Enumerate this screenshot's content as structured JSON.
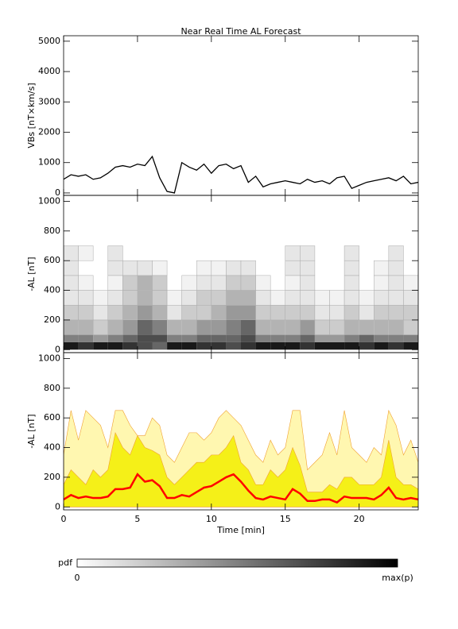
{
  "chart_data": [
    {
      "type": "line",
      "title": "Near Real Time AL Forecast",
      "ylabel": "VBs [nT×km/s]",
      "xlim": [
        0,
        24
      ],
      "ylim": [
        -80,
        5180
      ],
      "yticks": [
        0,
        1000,
        2000,
        3000,
        4000,
        5000
      ],
      "x": [
        0,
        0.5,
        1,
        1.5,
        2,
        2.5,
        3,
        3.5,
        4,
        4.5,
        5,
        5.5,
        6,
        6.5,
        7,
        7.5,
        8,
        8.5,
        9,
        9.5,
        10,
        10.5,
        11,
        11.5,
        12,
        12.5,
        13,
        13.5,
        14,
        14.5,
        15,
        15.5,
        16,
        16.5,
        17,
        17.5,
        18,
        18.5,
        19,
        19.5,
        20,
        20.5,
        21,
        21.5,
        22,
        22.5,
        23,
        23.5,
        24
      ],
      "series": [
        {
          "color": "#000000",
          "values": [
            450,
            600,
            550,
            600,
            450,
            500,
            650,
            850,
            900,
            850,
            950,
            900,
            1200,
            500,
            50,
            0,
            1000,
            850,
            750,
            950,
            650,
            900,
            950,
            800,
            900,
            350,
            550,
            200,
            300,
            350,
            400,
            350,
            300,
            450,
            350,
            400,
            300,
            500,
            550,
            150,
            250,
            350,
            400,
            450,
            500,
            400,
            550,
            300,
            350
          ]
        }
      ]
    },
    {
      "type": "heatmap",
      "ylabel": "-AL [nT]",
      "xlim": [
        0,
        24
      ],
      "ylim": [
        -20,
        1040
      ],
      "yticks": [
        0,
        200,
        400,
        600,
        800,
        1000
      ],
      "x_bins": [
        0,
        1,
        2,
        3,
        4,
        5,
        6,
        7,
        8,
        9,
        10,
        11,
        12,
        13,
        14,
        15,
        16,
        17,
        18,
        19,
        20,
        21,
        22,
        23,
        24
      ],
      "y_bins": [
        0,
        50,
        100,
        200,
        300,
        400,
        500,
        600,
        700
      ],
      "values": [
        [
          0.9,
          0.8,
          0.9,
          0.9,
          0.8,
          0.7,
          0.6,
          0.9,
          0.9,
          0.8,
          0.8,
          0.7,
          0.8,
          0.9,
          0.9,
          0.9,
          0.8,
          0.9,
          0.9,
          0.9,
          0.8,
          0.9,
          0.8,
          0.9
        ],
        [
          0.5,
          0.5,
          0.4,
          0.5,
          0.6,
          0.7,
          0.7,
          0.5,
          0.5,
          0.6,
          0.6,
          0.6,
          0.7,
          0.5,
          0.5,
          0.5,
          0.6,
          0.4,
          0.4,
          0.5,
          0.6,
          0.5,
          0.5,
          0.5
        ],
        [
          0.3,
          0.3,
          0.2,
          0.3,
          0.4,
          0.6,
          0.5,
          0.3,
          0.3,
          0.4,
          0.4,
          0.5,
          0.6,
          0.3,
          0.3,
          0.3,
          0.4,
          0.2,
          0.2,
          0.3,
          0.3,
          0.3,
          0.3,
          0.2
        ],
        [
          0.2,
          0.2,
          0.1,
          0.2,
          0.3,
          0.4,
          0.3,
          0.1,
          0.2,
          0.2,
          0.3,
          0.4,
          0.4,
          0.2,
          0.2,
          0.2,
          0.2,
          0.1,
          0.1,
          0.2,
          0.1,
          0.2,
          0.2,
          0.2
        ],
        [
          0.1,
          0.1,
          0.05,
          0.1,
          0.2,
          0.3,
          0.2,
          0.05,
          0.1,
          0.2,
          0.2,
          0.3,
          0.3,
          0.1,
          0.05,
          0.1,
          0.1,
          0.05,
          0.05,
          0.1,
          0.05,
          0.1,
          0.1,
          0.1
        ],
        [
          0.1,
          0.05,
          0,
          0.05,
          0.2,
          0.3,
          0.2,
          0,
          0.05,
          0.1,
          0.1,
          0.2,
          0.2,
          0.05,
          0,
          0.05,
          0.1,
          0,
          0,
          0.1,
          0,
          0.05,
          0.1,
          0.05
        ],
        [
          0.1,
          0,
          0,
          0.1,
          0.1,
          0.1,
          0.05,
          0,
          0,
          0.05,
          0.05,
          0.1,
          0.1,
          0,
          0,
          0.1,
          0.1,
          0,
          0,
          0.1,
          0,
          0.05,
          0.1,
          0
        ],
        [
          0.1,
          0.05,
          0,
          0.1,
          0,
          0,
          0,
          0,
          0,
          0,
          0,
          0,
          0,
          0,
          0,
          0.1,
          0.1,
          0,
          0,
          0.1,
          0,
          0,
          0.1,
          0
        ]
      ],
      "colorbar": {
        "label": "pdf",
        "min_label": "0",
        "max_label": "max(p)"
      }
    },
    {
      "type": "line",
      "ylabel": "-AL [nT]",
      "xlabel": "Time [min]",
      "xlim": [
        0,
        24
      ],
      "ylim": [
        -20,
        1040
      ],
      "yticks": [
        0,
        200,
        400,
        600,
        800,
        1000
      ],
      "xticks": [
        0,
        5,
        10,
        15,
        20
      ],
      "x": [
        0,
        0.5,
        1,
        1.5,
        2,
        2.5,
        3,
        3.5,
        4,
        4.5,
        5,
        5.5,
        6,
        6.5,
        7,
        7.5,
        8,
        8.5,
        9,
        9.5,
        10,
        10.5,
        11,
        11.5,
        12,
        12.5,
        13,
        13.5,
        14,
        14.5,
        15,
        15.5,
        16,
        16.5,
        17,
        17.5,
        18,
        18.5,
        19,
        19.5,
        20,
        20.5,
        21,
        21.5,
        22,
        22.5,
        23,
        23.5,
        24
      ],
      "series": [
        {
          "kind": "area",
          "color": "#fff7b0",
          "values": [
            350,
            650,
            450,
            650,
            600,
            550,
            400,
            650,
            650,
            550,
            480,
            480,
            600,
            550,
            350,
            300,
            400,
            500,
            500,
            450,
            500,
            600,
            650,
            600,
            550,
            450,
            350,
            300,
            450,
            350,
            400,
            650,
            650,
            250,
            300,
            350,
            500,
            350,
            650,
            400,
            350,
            300,
            400,
            350,
            650,
            550,
            350,
            450,
            300
          ]
        },
        {
          "kind": "area",
          "color": "#f5f018",
          "values": [
            150,
            250,
            200,
            150,
            250,
            200,
            250,
            500,
            400,
            350,
            480,
            400,
            380,
            350,
            200,
            150,
            200,
            250,
            300,
            300,
            350,
            350,
            400,
            480,
            300,
            250,
            150,
            150,
            250,
            200,
            250,
            400,
            280,
            100,
            100,
            100,
            150,
            120,
            200,
            200,
            150,
            150,
            150,
            200,
            450,
            200,
            150,
            150,
            120
          ]
        },
        {
          "kind": "line",
          "color": "#ff0000",
          "values": [
            50,
            80,
            60,
            70,
            60,
            60,
            70,
            120,
            120,
            130,
            220,
            170,
            180,
            140,
            60,
            60,
            80,
            70,
            100,
            130,
            140,
            170,
            200,
            220,
            170,
            110,
            60,
            50,
            70,
            60,
            50,
            120,
            90,
            40,
            40,
            50,
            50,
            30,
            70,
            60,
            60,
            60,
            50,
            80,
            130,
            60,
            50,
            60,
            50
          ]
        }
      ]
    }
  ]
}
